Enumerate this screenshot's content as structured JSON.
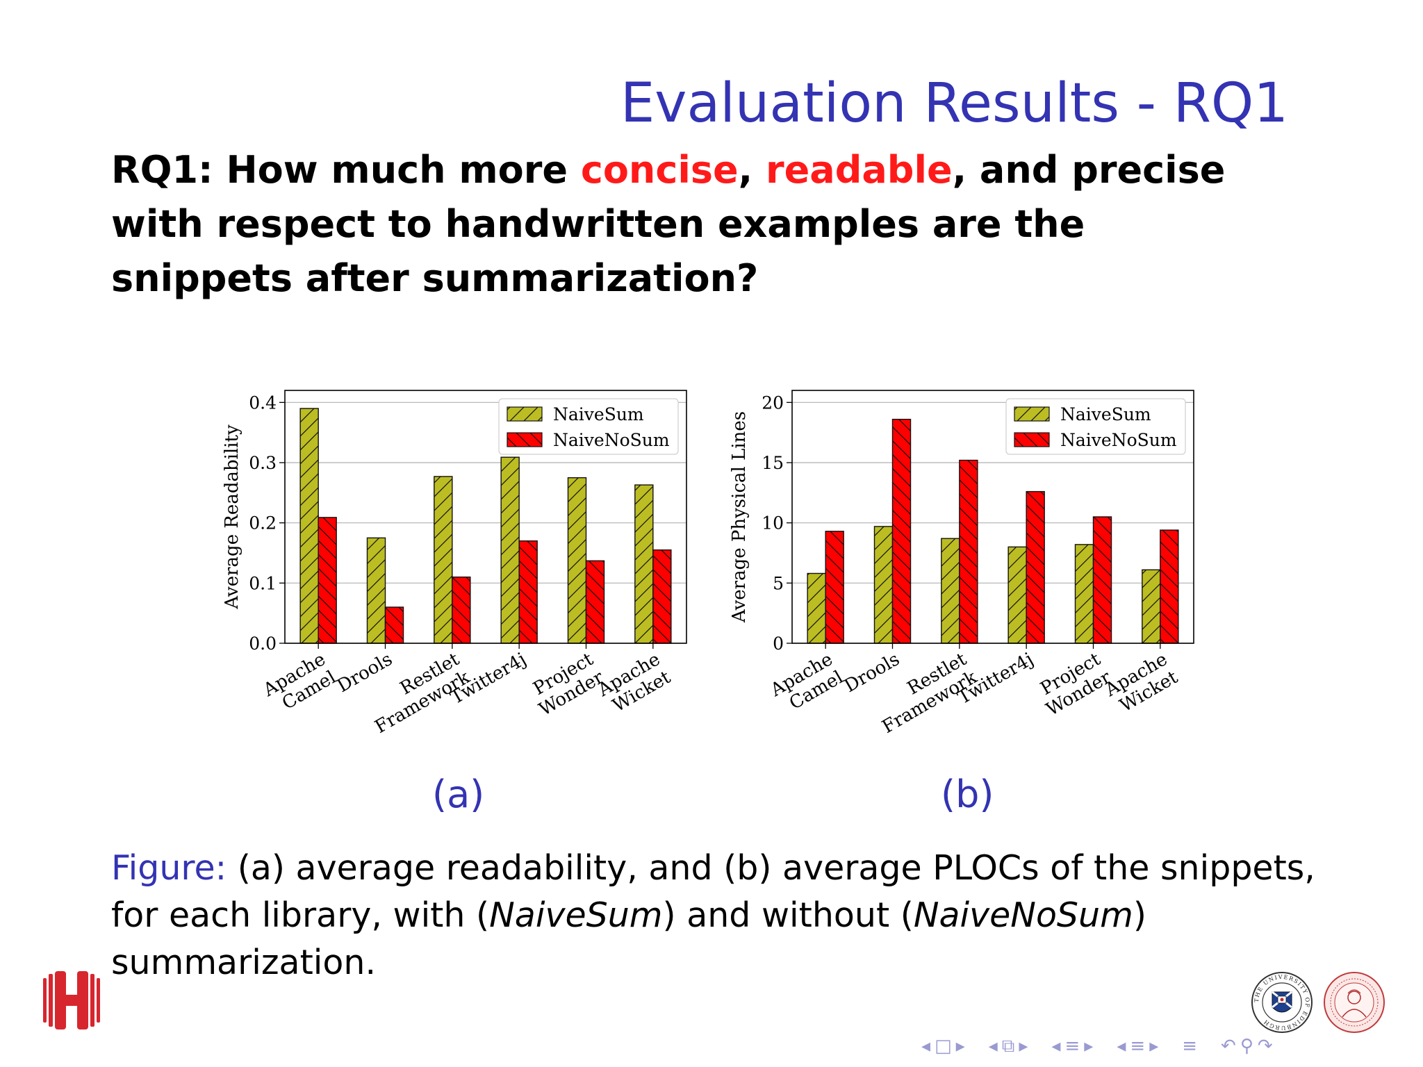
{
  "slide": {
    "title": "Evaluation Results - RQ1",
    "question": {
      "p1": "RQ1: How much more ",
      "concise": "concise",
      "p2": ", ",
      "readable": "readable",
      "p3": ", and precise with respect to handwritten examples are the snippets after summarization?"
    },
    "sub_a": "(a)",
    "sub_b": "(b)",
    "caption": {
      "fig": "Figure:",
      "t1": " (a) average readability, and (b) average PLOCs of the snippets, for each library, with (",
      "s1": "NaiveSum",
      "t2": ") and without (",
      "s2": "NaiveNoSum",
      "t3": ") summarization."
    }
  },
  "logos": {
    "left": "H",
    "seal_edinburgh": "THE UNIVERSITY OF EDINBURGH"
  },
  "nav": {
    "icons": [
      "arrow-left",
      "frame",
      "arrow-right",
      "arrow-left",
      "subsection",
      "arrow-right",
      "arrow-left",
      "section",
      "arrow-right",
      "arrow-left",
      "align",
      "arrow-right",
      "align",
      "undo",
      "search",
      "redo"
    ],
    "glyphs": [
      "◂",
      "□",
      "▸",
      "◂",
      "⧉",
      "▸",
      "◂",
      "≡",
      "▸",
      "◂",
      "≡",
      "▸",
      "≡",
      "↶",
      "⚲",
      "↷"
    ]
  },
  "colors": {
    "title": "#3333b3",
    "highlight": "#ff1a1a",
    "naivesum": "#bcbd22",
    "naivenosum": "#ff0000",
    "grid": "#b0b0b0"
  },
  "chart_data": [
    {
      "type": "bar",
      "title": "",
      "xlabel": "",
      "ylabel": "Average Readability",
      "ylim": [
        0,
        0.42
      ],
      "yticks": [
        0.0,
        0.1,
        0.2,
        0.3,
        0.4
      ],
      "ytick_labels": [
        "0.0",
        "0.1",
        "0.2",
        "0.3",
        "0.4"
      ],
      "grid": true,
      "legend": "top-right",
      "categories": [
        [
          "Apache",
          "Camel"
        ],
        [
          "Drools"
        ],
        [
          "Restlet",
          "Framework"
        ],
        [
          "Twitter4j"
        ],
        [
          "Project",
          "Wonder"
        ],
        [
          "Apache",
          "Wicket"
        ]
      ],
      "series": [
        {
          "name": "NaiveSum",
          "values": [
            0.39,
            0.175,
            0.277,
            0.309,
            0.275,
            0.263
          ]
        },
        {
          "name": "NaiveNoSum",
          "values": [
            0.209,
            0.06,
            0.11,
            0.17,
            0.137,
            0.155
          ]
        }
      ]
    },
    {
      "type": "bar",
      "title": "",
      "xlabel": "",
      "ylabel": "Average Physical Lines",
      "ylim": [
        0,
        21
      ],
      "yticks": [
        0,
        5,
        10,
        15,
        20
      ],
      "ytick_labels": [
        "0",
        "5",
        "10",
        "15",
        "20"
      ],
      "grid": true,
      "legend": "top-right",
      "categories": [
        [
          "Apache",
          "Camel"
        ],
        [
          "Drools"
        ],
        [
          "Restlet",
          "Framework"
        ],
        [
          "Twitter4j"
        ],
        [
          "Project",
          "Wonder"
        ],
        [
          "Apache",
          "Wicket"
        ]
      ],
      "series": [
        {
          "name": "NaiveSum",
          "values": [
            5.8,
            9.7,
            8.7,
            8.0,
            8.2,
            6.1
          ]
        },
        {
          "name": "NaiveNoSum",
          "values": [
            9.3,
            18.6,
            15.2,
            12.6,
            10.5,
            9.4
          ]
        }
      ]
    }
  ]
}
